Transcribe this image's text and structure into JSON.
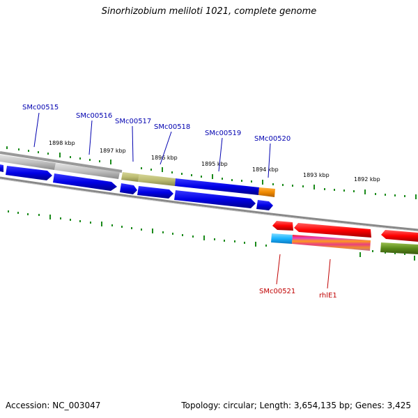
{
  "title": "Sinorhizobium meliloti 1021, complete genome",
  "accession": "Accession: NC_003047",
  "topology": "Topology: circular; Length: 3,654,135 bp; Genes: 3,425",
  "colors": {
    "ruler_tick": "#1a8a1a",
    "backbone": "#888888",
    "cds_blue": "#0000e6",
    "gray_gene": "#c0c0c0",
    "olive_gene": "#bcbc72",
    "orange_gene": "#f08a00",
    "red_gene": "#ff0000",
    "cyan_gene": "#19b4ff",
    "olive_dark": "#5a8a1a",
    "label_blue": "#0000b0",
    "label_red": "#c00000"
  },
  "kbp_labels": [
    "1898 kbp",
    "1897 kbp",
    "1896 kbp",
    "1895 kbp",
    "1894 kbp",
    "1893 kbp",
    "1892 kbp"
  ],
  "gene_labels_top": [
    "SMc00515",
    "SMc00516",
    "SMc00517",
    "SMc00518",
    "SMc00519",
    "SMc00520"
  ],
  "gene_labels_bottom": [
    "SMc00521",
    "rhlE1"
  ]
}
